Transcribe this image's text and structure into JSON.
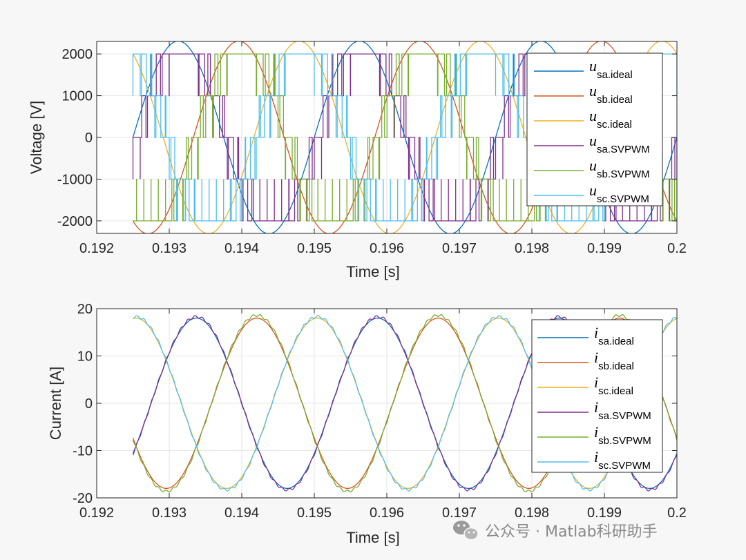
{
  "chart_data": [
    {
      "type": "line",
      "ylabel": "Voltage [V]",
      "xlabel": "Time [s]",
      "xlim": [
        0.192,
        0.2
      ],
      "ylim": [
        -2300,
        2300
      ],
      "xticks": [
        "0.192",
        "0.193",
        "0.194",
        "0.195",
        "0.196",
        "0.197",
        "0.198",
        "0.199",
        "0.2"
      ],
      "yticks": [
        "-2000",
        "-1000",
        "0",
        "1000",
        "2000"
      ],
      "grid": true,
      "legend_position": "top-right",
      "data_x_range": [
        0.1925,
        0.2
      ],
      "fundamental_frequency_hz": 400,
      "switching_frequency_hz": 10000,
      "ideal_amplitude": 2309,
      "svpwm_levels": [
        -2000,
        -1000,
        0,
        1000,
        2000
      ],
      "series": [
        {
          "base": "u",
          "sub": "sa.ideal",
          "color": "#0072BD",
          "kind": "ideal",
          "phase_deg": 0,
          "amplitude": 2309
        },
        {
          "base": "u",
          "sub": "sb.ideal",
          "color": "#D95319",
          "kind": "ideal",
          "phase_deg": -120,
          "amplitude": 2309
        },
        {
          "base": "u",
          "sub": "sc.ideal",
          "color": "#EDB120",
          "kind": "ideal",
          "phase_deg": 120,
          "amplitude": 2309
        },
        {
          "base": "u",
          "sub": "sa.SVPWM",
          "color": "#7E2F8E",
          "kind": "svpwm",
          "phase_deg": 0
        },
        {
          "base": "u",
          "sub": "sb.SVPWM",
          "color": "#77AC30",
          "kind": "svpwm",
          "phase_deg": -120
        },
        {
          "base": "u",
          "sub": "sc.SVPWM",
          "color": "#4DBEEE",
          "kind": "svpwm",
          "phase_deg": 120
        }
      ]
    },
    {
      "type": "line",
      "ylabel": "Current [A]",
      "xlabel": "Time [s]",
      "xlim": [
        0.192,
        0.2
      ],
      "ylim": [
        -20,
        20
      ],
      "xticks": [
        "0.192",
        "0.193",
        "0.194",
        "0.195",
        "0.196",
        "0.197",
        "0.198",
        "0.199",
        "0.2"
      ],
      "yticks": [
        "-20",
        "-10",
        "0",
        "10",
        "20"
      ],
      "grid": true,
      "legend_position": "top-right",
      "data_x_range": [
        0.1925,
        0.2
      ],
      "fundamental_frequency_hz": 400,
      "series": [
        {
          "base": "i",
          "sub": "sa.ideal",
          "color": "#0072BD",
          "amplitude": 18.0,
          "phase_deg": -36
        },
        {
          "base": "i",
          "sub": "sb.ideal",
          "color": "#D95319",
          "amplitude": 18.0,
          "phase_deg": -156
        },
        {
          "base": "i",
          "sub": "sc.ideal",
          "color": "#EDB120",
          "amplitude": 18.0,
          "phase_deg": 84
        },
        {
          "base": "i",
          "sub": "sa.SVPWM",
          "color": "#7E2F8E",
          "amplitude": 18.3,
          "phase_deg": -36
        },
        {
          "base": "i",
          "sub": "sb.SVPWM",
          "color": "#77AC30",
          "amplitude": 18.6,
          "phase_deg": -156
        },
        {
          "base": "i",
          "sub": "sc.SVPWM",
          "color": "#4DBEEE",
          "amplitude": 18.3,
          "phase_deg": 84
        }
      ]
    }
  ],
  "watermark": {
    "icon": "wechat-icon",
    "text": "公众号 · Matlab科研助手"
  }
}
